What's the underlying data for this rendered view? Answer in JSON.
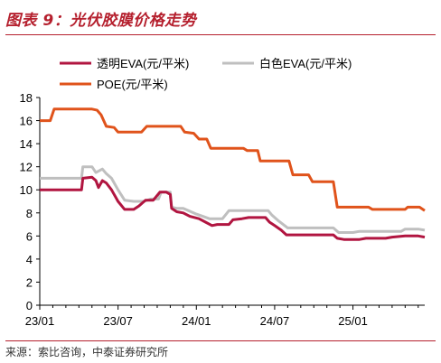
{
  "header": {
    "title": "图表 9：光伏胶膜价格走势"
  },
  "footer": {
    "source": "来源：索比咨询，中泰证券研究所"
  },
  "colors": {
    "accent": "#b5202e",
    "transparent_eva": "#b11540",
    "white_eva": "#bfbfbf",
    "poe": "#e0531b",
    "axis": "#000000"
  },
  "chart_data": {
    "type": "line",
    "title": "光伏胶膜价格走势",
    "xlabel": "",
    "ylabel": "",
    "x_tick_labels": [
      "23/01",
      "23/07",
      "24/01",
      "24/07",
      "25/01"
    ],
    "x_tick_months": [
      0,
      6,
      12,
      18,
      24
    ],
    "xlim": [
      0,
      29.5
    ],
    "ylim": [
      0,
      18
    ],
    "y_ticks": [
      0,
      2,
      4,
      6,
      8,
      10,
      12,
      14,
      16,
      18
    ],
    "grid": false,
    "legend_position": "top",
    "series": [
      {
        "name": "透明EVA(元/平米)",
        "color": "#b11540",
        "points": [
          [
            0,
            10
          ],
          [
            2,
            10
          ],
          [
            3.2,
            10
          ],
          [
            3.3,
            11
          ],
          [
            4,
            11.1
          ],
          [
            4.3,
            10.8
          ],
          [
            4.5,
            10.2
          ],
          [
            4.8,
            10.8
          ],
          [
            5.1,
            10.6
          ],
          [
            5.5,
            10
          ],
          [
            6,
            9
          ],
          [
            6.5,
            8.3
          ],
          [
            7.2,
            8.3
          ],
          [
            7.6,
            8.6
          ],
          [
            8.1,
            9.1
          ],
          [
            8.7,
            9.1
          ],
          [
            9.2,
            9.8
          ],
          [
            9.7,
            9.8
          ],
          [
            10,
            9.6
          ],
          [
            10.1,
            8.4
          ],
          [
            10.5,
            8.1
          ],
          [
            11,
            8
          ],
          [
            11.5,
            7.7
          ],
          [
            12.2,
            7.5
          ],
          [
            12.7,
            7.2
          ],
          [
            13.2,
            6.9
          ],
          [
            13.6,
            7
          ],
          [
            14.5,
            7
          ],
          [
            14.8,
            7.4
          ],
          [
            15.5,
            7.5
          ],
          [
            16,
            7.6
          ],
          [
            17.3,
            7.6
          ],
          [
            17.6,
            7.2
          ],
          [
            18,
            6.9
          ],
          [
            18.5,
            6.5
          ],
          [
            18.9,
            6.1
          ],
          [
            22.5,
            6.1
          ],
          [
            22.8,
            5.8
          ],
          [
            23.3,
            5.7
          ],
          [
            24.5,
            5.7
          ],
          [
            25,
            5.8
          ],
          [
            26.5,
            5.8
          ],
          [
            27,
            5.9
          ],
          [
            28,
            6
          ],
          [
            29,
            6
          ],
          [
            29.5,
            5.9
          ]
        ]
      },
      {
        "name": "白色EVA(元/平米)",
        "color": "#bfbfbf",
        "points": [
          [
            0,
            11
          ],
          [
            2,
            11
          ],
          [
            3.2,
            11
          ],
          [
            3.3,
            12
          ],
          [
            4,
            12
          ],
          [
            4.3,
            11.5
          ],
          [
            4.8,
            11.8
          ],
          [
            5.1,
            11.4
          ],
          [
            5.5,
            11
          ],
          [
            6,
            10
          ],
          [
            6.5,
            9.1
          ],
          [
            7.2,
            9
          ],
          [
            8,
            9
          ],
          [
            8.5,
            9.2
          ],
          [
            9.1,
            9.2
          ],
          [
            9.3,
            9.8
          ],
          [
            10,
            9.8
          ],
          [
            10.1,
            8.5
          ],
          [
            10.5,
            8.4
          ],
          [
            11,
            8.4
          ],
          [
            12,
            7.9
          ],
          [
            12.5,
            7.7
          ],
          [
            13,
            7.5
          ],
          [
            14,
            7.5
          ],
          [
            14.5,
            8.2
          ],
          [
            17.5,
            8.2
          ],
          [
            17.8,
            7.8
          ],
          [
            18.3,
            7.3
          ],
          [
            19,
            6.7
          ],
          [
            22.5,
            6.7
          ],
          [
            22.9,
            6.3
          ],
          [
            24,
            6.3
          ],
          [
            24.5,
            6.4
          ],
          [
            27.7,
            6.4
          ],
          [
            28,
            6.6
          ],
          [
            29,
            6.6
          ],
          [
            29.5,
            6.5
          ]
        ]
      },
      {
        "name": "POE(元/平米)",
        "color": "#e0531b",
        "points": [
          [
            0,
            16
          ],
          [
            0.8,
            16
          ],
          [
            1.1,
            17
          ],
          [
            4,
            17
          ],
          [
            4.4,
            16.9
          ],
          [
            4.7,
            16.5
          ],
          [
            5.1,
            15.5
          ],
          [
            5.7,
            15.4
          ],
          [
            6,
            15
          ],
          [
            7.8,
            15
          ],
          [
            8.2,
            15.5
          ],
          [
            10.8,
            15.5
          ],
          [
            11.1,
            15
          ],
          [
            11.8,
            14.9
          ],
          [
            12.2,
            14.4
          ],
          [
            12.8,
            14.4
          ],
          [
            13.1,
            13.6
          ],
          [
            15.6,
            13.6
          ],
          [
            15.9,
            13.4
          ],
          [
            16.7,
            13.4
          ],
          [
            16.9,
            12.5
          ],
          [
            19.1,
            12.5
          ],
          [
            19.4,
            11.3
          ],
          [
            20.6,
            11.3
          ],
          [
            20.9,
            10.7
          ],
          [
            22.5,
            10.7
          ],
          [
            22.8,
            8.5
          ],
          [
            25.2,
            8.5
          ],
          [
            25.5,
            8.3
          ],
          [
            28,
            8.3
          ],
          [
            28.2,
            8.5
          ],
          [
            29.1,
            8.5
          ],
          [
            29.5,
            8.2
          ]
        ]
      }
    ]
  }
}
